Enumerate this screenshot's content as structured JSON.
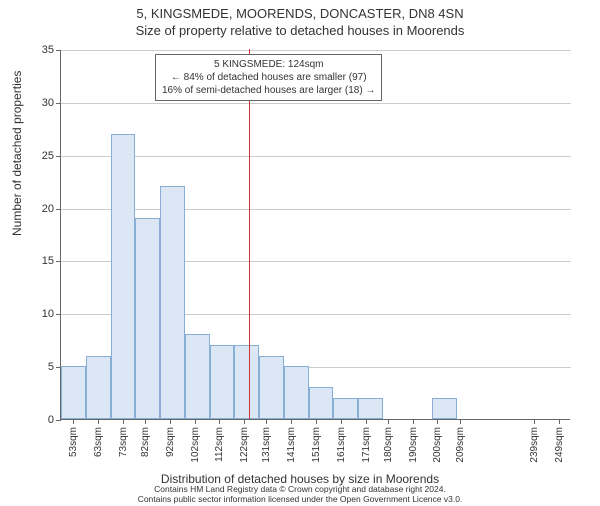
{
  "title_main": "5, KINGSMEDE, MOORENDS, DONCASTER, DN8 4SN",
  "title_sub": "Size of property relative to detached houses in Moorends",
  "chart": {
    "type": "histogram",
    "y_label": "Number of detached properties",
    "x_label": "Distribution of detached houses by size in Moorends",
    "ylim": [
      0,
      35
    ],
    "ytick_step": 5,
    "yticks": [
      0,
      5,
      10,
      15,
      20,
      25,
      30,
      35
    ],
    "bar_fill": "#dbe7f5",
    "bar_border": "#88aed6",
    "grid_color": "#cccccc",
    "axis_color": "#666666",
    "background_color": "#ffffff",
    "ref_line_color": "#cc3333",
    "ref_line_x": 124,
    "x_range": [
      48,
      254
    ],
    "xticks": [
      {
        "v": 53,
        "label": "53sqm"
      },
      {
        "v": 63,
        "label": "63sqm"
      },
      {
        "v": 73,
        "label": "73sqm"
      },
      {
        "v": 82,
        "label": "82sqm"
      },
      {
        "v": 92,
        "label": "92sqm"
      },
      {
        "v": 102,
        "label": "102sqm"
      },
      {
        "v": 112,
        "label": "112sqm"
      },
      {
        "v": 122,
        "label": "122sqm"
      },
      {
        "v": 131,
        "label": "131sqm"
      },
      {
        "v": 141,
        "label": "141sqm"
      },
      {
        "v": 151,
        "label": "151sqm"
      },
      {
        "v": 161,
        "label": "161sqm"
      },
      {
        "v": 171,
        "label": "171sqm"
      },
      {
        "v": 180,
        "label": "180sqm"
      },
      {
        "v": 190,
        "label": "190sqm"
      },
      {
        "v": 200,
        "label": "200sqm"
      },
      {
        "v": 209,
        "label": "209sqm"
      },
      {
        "v": 239,
        "label": "239sqm"
      },
      {
        "v": 249,
        "label": "249sqm"
      }
    ],
    "bars": [
      {
        "x0": 48,
        "x1": 58,
        "h": 5
      },
      {
        "x0": 58,
        "x1": 68,
        "h": 6
      },
      {
        "x0": 68,
        "x1": 78,
        "h": 27
      },
      {
        "x0": 78,
        "x1": 88,
        "h": 19
      },
      {
        "x0": 88,
        "x1": 98,
        "h": 22
      },
      {
        "x0": 98,
        "x1": 108,
        "h": 8
      },
      {
        "x0": 108,
        "x1": 118,
        "h": 7
      },
      {
        "x0": 118,
        "x1": 128,
        "h": 7
      },
      {
        "x0": 128,
        "x1": 138,
        "h": 6
      },
      {
        "x0": 138,
        "x1": 148,
        "h": 5
      },
      {
        "x0": 148,
        "x1": 158,
        "h": 3
      },
      {
        "x0": 158,
        "x1": 168,
        "h": 2
      },
      {
        "x0": 168,
        "x1": 178,
        "h": 2
      },
      {
        "x0": 178,
        "x1": 188,
        "h": 0
      },
      {
        "x0": 188,
        "x1": 198,
        "h": 0
      },
      {
        "x0": 198,
        "x1": 208,
        "h": 2
      },
      {
        "x0": 208,
        "x1": 218,
        "h": 0
      },
      {
        "x0": 238,
        "x1": 248,
        "h": 0
      },
      {
        "x0": 248,
        "x1": 254,
        "h": 0
      }
    ],
    "info_box": {
      "line1": "5 KINGSMEDE: 124sqm",
      "line2": "← 84% of detached houses are smaller (97)",
      "line3": "16% of semi-detached houses are larger (18) →"
    }
  },
  "footer": {
    "line1": "Contains HM Land Registry data © Crown copyright and database right 2024.",
    "line2": "Contains public sector information licensed under the Open Government Licence v3.0."
  }
}
